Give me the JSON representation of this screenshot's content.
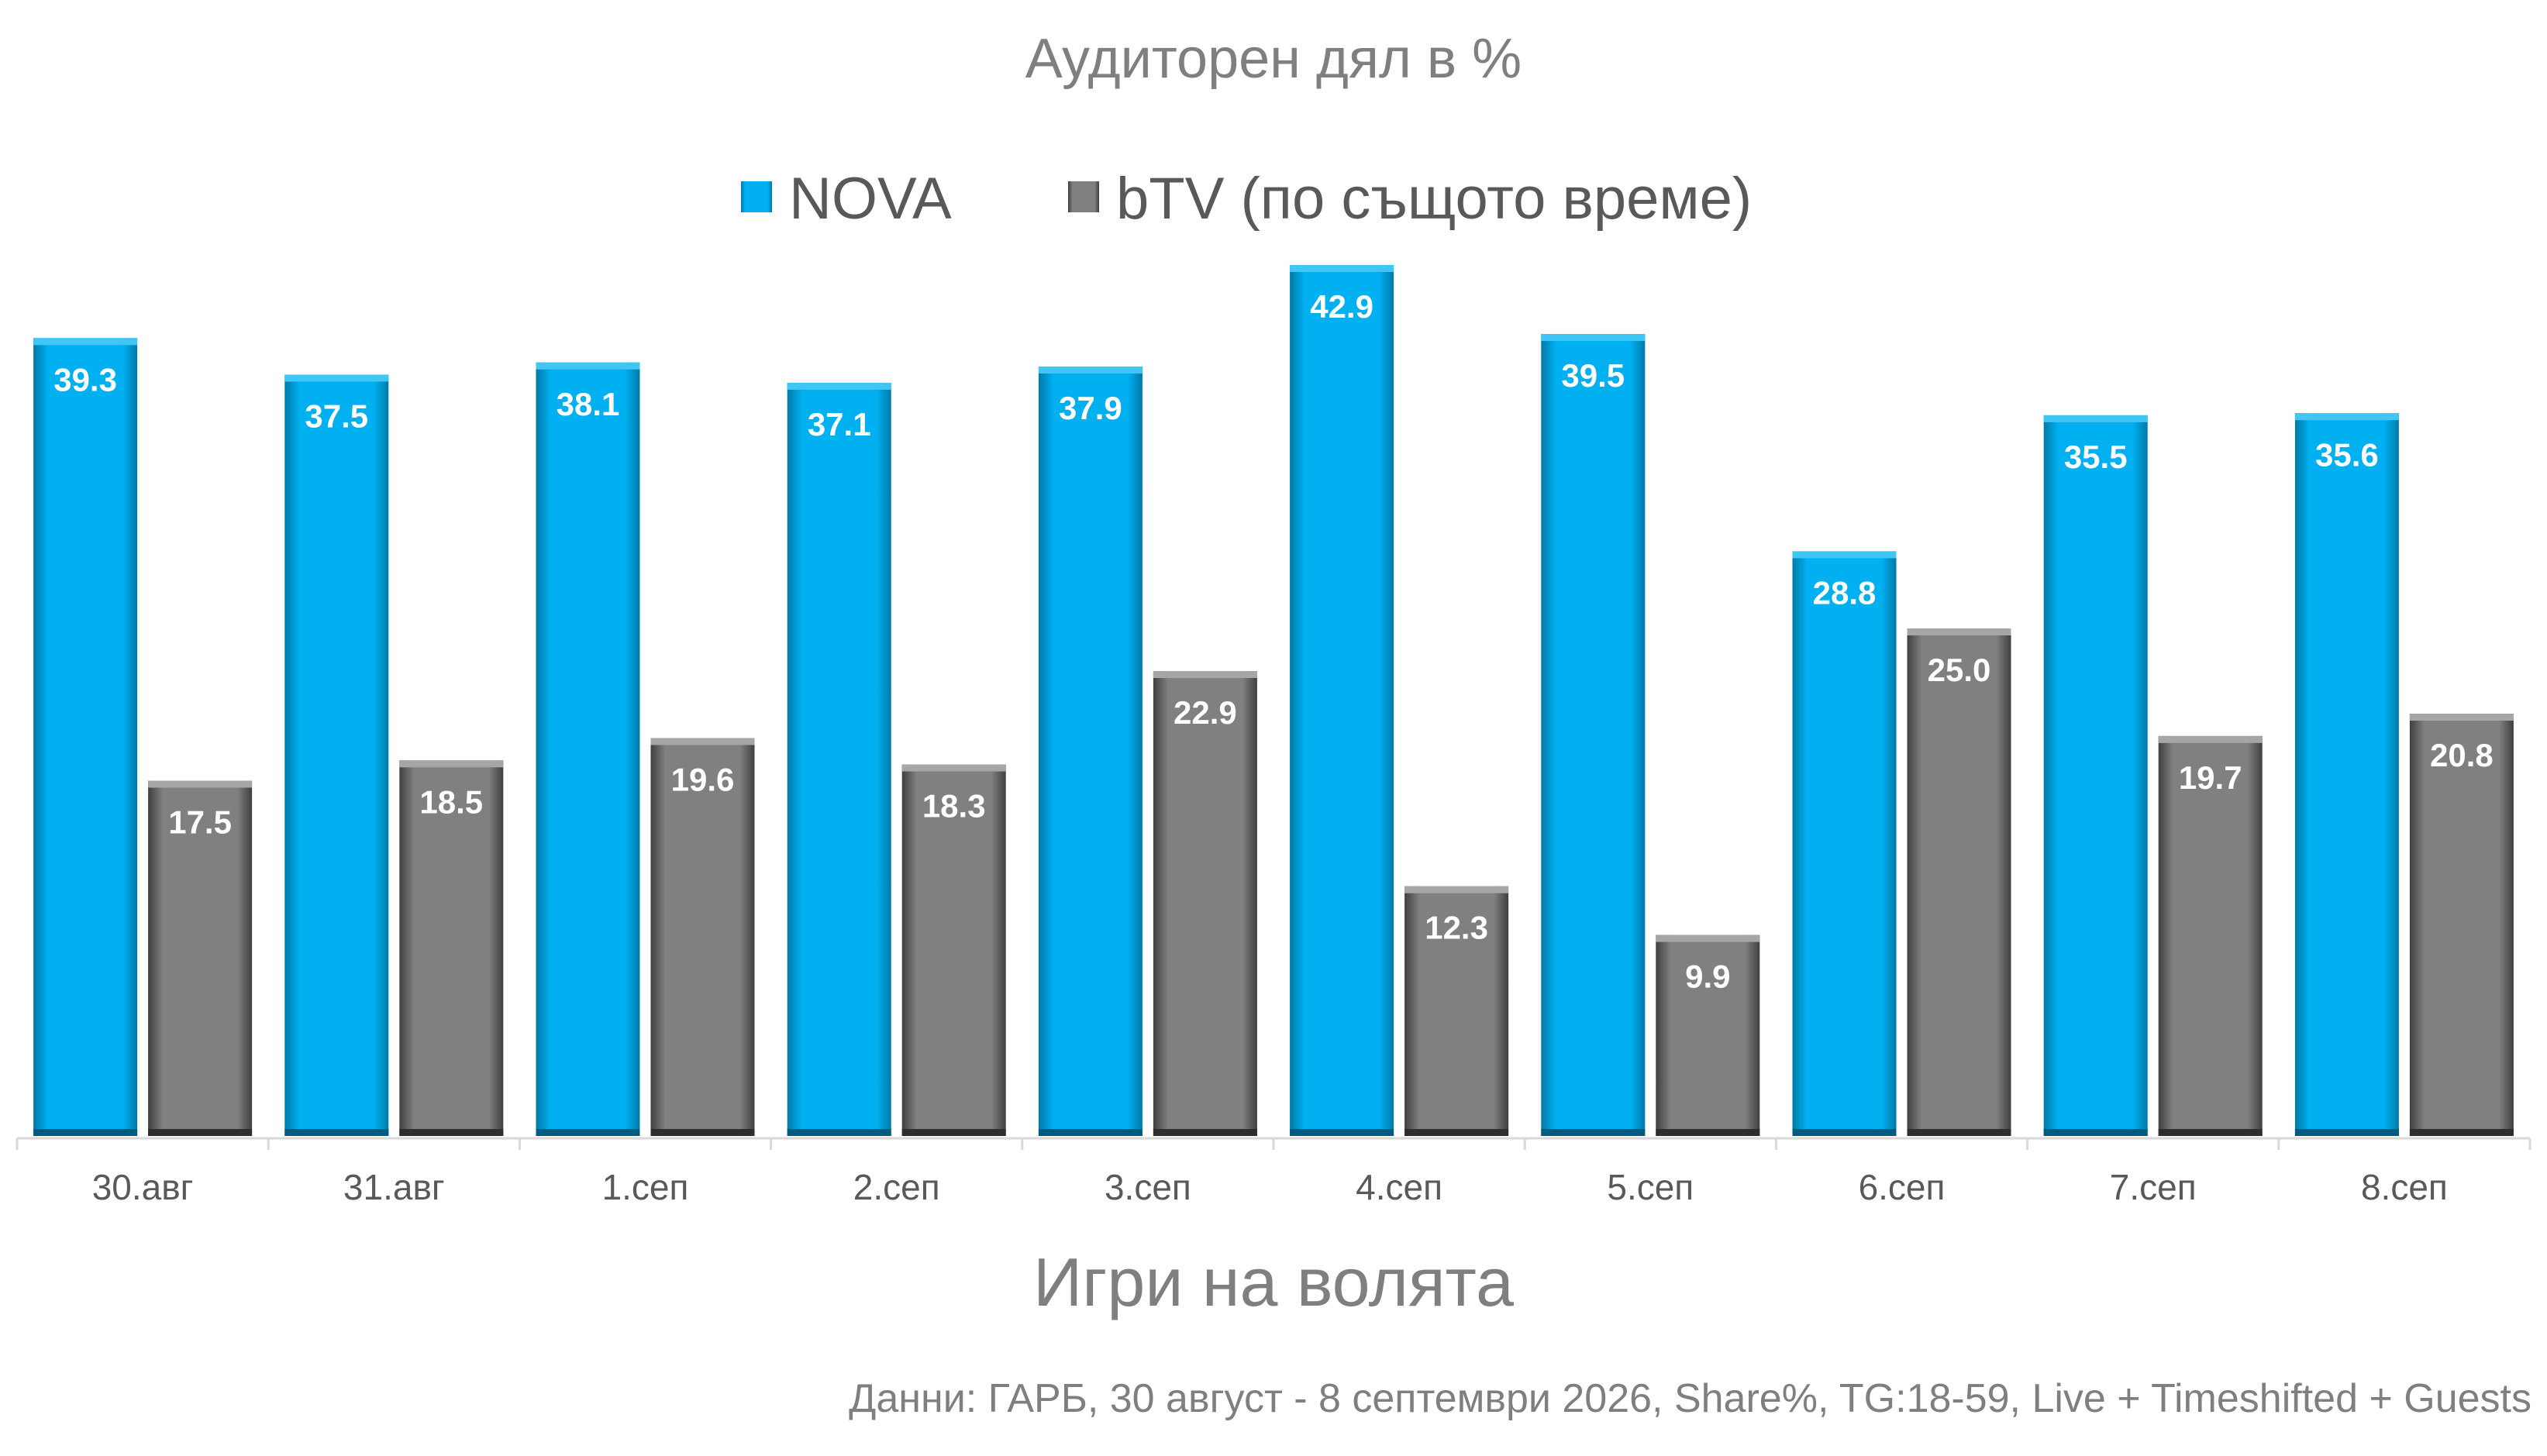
{
  "chart_data": {
    "type": "bar",
    "title": "Аудиторен дял в %",
    "xlabel": "Игри на волята",
    "ylabel": "",
    "footnote": "Данни: ГАРБ, 30 август - 8 септември 2026, Share%, TG:18-59, Live + Timeshifted + Guests",
    "categories": [
      "30.авг",
      "31.авг",
      "1.сеп",
      "2.сеп",
      "3.сеп",
      "4.сеп",
      "5.сеп",
      "6.сеп",
      "7.сеп",
      "8.сеп"
    ],
    "series": [
      {
        "name": "NOVA",
        "color": "#00b0f0",
        "values": [
          39.3,
          37.5,
          38.1,
          37.1,
          37.9,
          42.9,
          39.5,
          28.8,
          35.5,
          35.6
        ],
        "labels": [
          "39.3",
          "37.5",
          "38.1",
          "37.1",
          "37.9",
          "42.9",
          "39.5",
          "28.8",
          "35.5",
          "35.6"
        ]
      },
      {
        "name": "bTV (по същото време)",
        "color": "#7f7f7f",
        "values": [
          17.5,
          18.5,
          19.6,
          18.3,
          22.9,
          12.3,
          9.9,
          25.0,
          19.7,
          20.8
        ],
        "labels": [
          "17.5",
          "18.5",
          "19.6",
          "18.3",
          "22.9",
          "12.3",
          "9.9",
          "25.0",
          "19.7",
          "20.8"
        ]
      }
    ],
    "ylim": [
      0,
      45
    ],
    "grid": false,
    "legend": "top-center"
  }
}
